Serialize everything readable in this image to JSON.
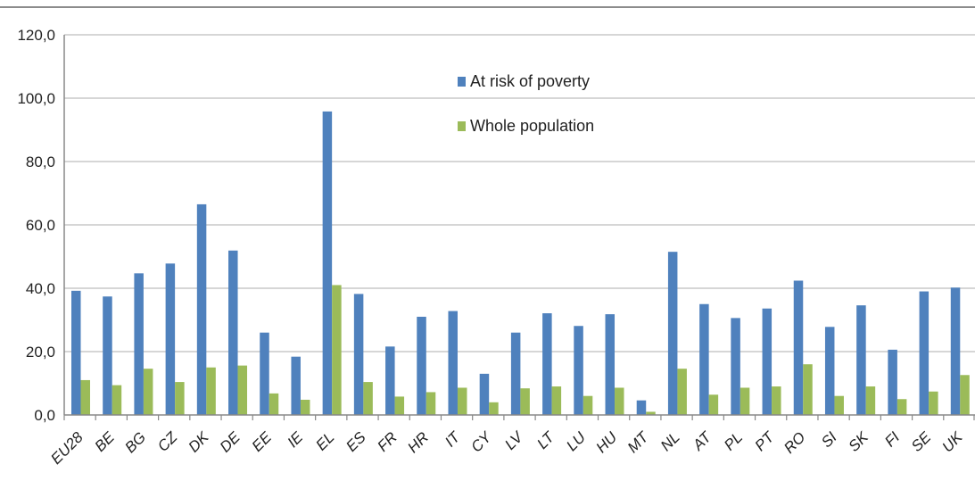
{
  "colors": {
    "at_risk": "#4f81bd",
    "whole": "#9bbb59",
    "grid": "#c8c8c8",
    "axis": "#888888"
  },
  "chart_data": {
    "type": "bar",
    "title": "",
    "xlabel": "",
    "ylabel": "",
    "ylim": [
      0,
      120
    ],
    "yticks": [
      "0,0",
      "20,0",
      "40,0",
      "60,0",
      "80,0",
      "100,0",
      "120,0"
    ],
    "grid": true,
    "legend_position": "top-center",
    "categories": [
      "EU28",
      "BE",
      "BG",
      "CZ",
      "DK",
      "DE",
      "EE",
      "IE",
      "EL",
      "ES",
      "FR",
      "HR",
      "IT",
      "CY",
      "LV",
      "LT",
      "LU",
      "HU",
      "MT",
      "NL",
      "AT",
      "PL",
      "PT",
      "RO",
      "SI",
      "SK",
      "FI",
      "SE",
      "UK"
    ],
    "series": [
      {
        "name": "At risk of poverty",
        "values": [
          39.2,
          37.4,
          44.7,
          47.8,
          66.5,
          51.9,
          26.0,
          18.4,
          95.8,
          38.2,
          21.6,
          31.0,
          32.8,
          13.0,
          26.0,
          32.1,
          28.1,
          31.8,
          4.6,
          51.5,
          35.0,
          30.6,
          33.6,
          42.4,
          27.8,
          34.6,
          20.6,
          39.0,
          40.2
        ]
      },
      {
        "name": "Whole population",
        "values": [
          11.0,
          9.4,
          14.6,
          10.4,
          15.0,
          15.6,
          6.8,
          4.8,
          41.0,
          10.4,
          5.8,
          7.2,
          8.6,
          4.0,
          8.4,
          9.0,
          6.0,
          8.6,
          1.0,
          14.6,
          6.4,
          8.6,
          9.0,
          16.0,
          6.0,
          9.0,
          5.0,
          7.4,
          12.6
        ]
      }
    ]
  }
}
